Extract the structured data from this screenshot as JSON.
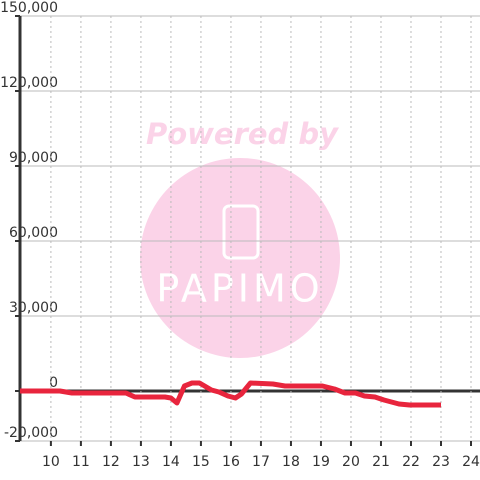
{
  "chart_data": {
    "type": "line",
    "annotations": [
      "Powered by",
      "PAPIMO"
    ],
    "x": [
      8.97,
      10.3,
      10.7,
      12.5,
      12.8,
      13.8,
      14.0,
      14.2,
      14.45,
      14.7,
      14.95,
      15.35,
      15.6,
      15.9,
      16.15,
      16.35,
      16.65,
      17.4,
      17.8,
      19.05,
      19.45,
      19.8,
      20.15,
      20.45,
      20.8,
      21.1,
      21.6,
      21.95,
      23.0
    ],
    "series": [
      {
        "color": "#e8253d",
        "values": [
          0,
          0,
          -800,
          -800,
          -2400,
          -2400,
          -2800,
          -4800,
          2000,
          3200,
          3200,
          400,
          -400,
          -2000,
          -2800,
          -1200,
          3200,
          2800,
          2000,
          2000,
          800,
          -800,
          -800,
          -2000,
          -2400,
          -3600,
          -5200,
          -5600,
          -5600
        ]
      }
    ],
    "xlim": [
      8.97,
      24.3
    ],
    "ylim": [
      -20000,
      150000
    ],
    "xticks": [
      10,
      11,
      12,
      13,
      14,
      15,
      16,
      17,
      18,
      19,
      20,
      21,
      22,
      23,
      24
    ],
    "yticks": [
      {
        "value": -20000,
        "label": "-20,000"
      },
      0,
      {
        "value": 30000,
        "label": "30,000"
      },
      {
        "value": 60000,
        "label": "60,000"
      },
      {
        "value": 90000,
        "label": "90,000"
      },
      {
        "value": 120000,
        "label": "120,000"
      },
      {
        "value": 150000,
        "label": "150,000"
      }
    ],
    "grid": true
  }
}
